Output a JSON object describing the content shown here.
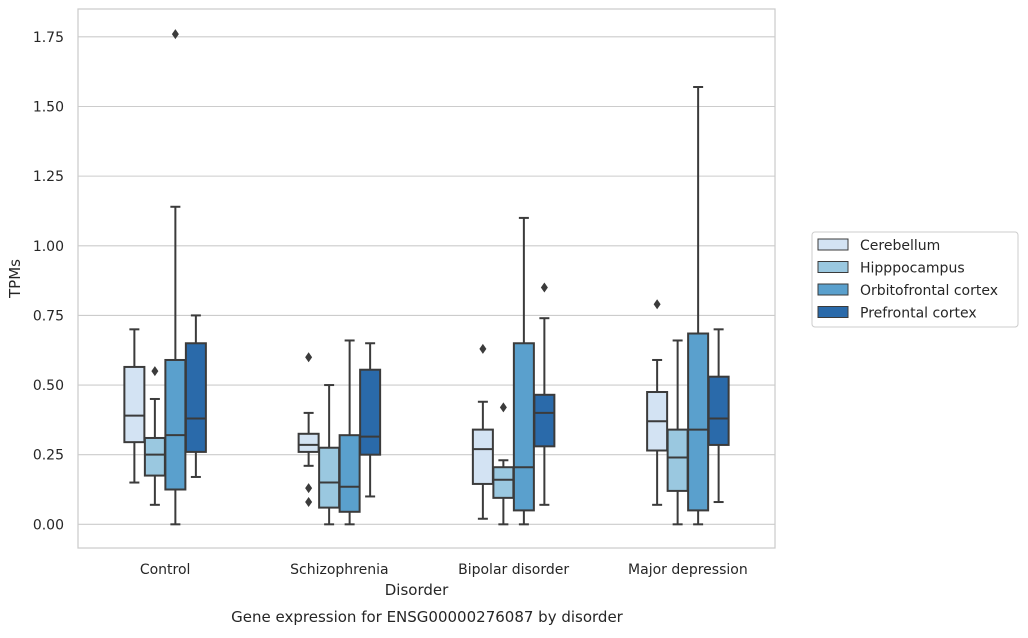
{
  "caption": "Gene expression for ENSG00000276087 by disorder",
  "chart_data": {
    "type": "box",
    "xlabel": "Disorder",
    "ylabel": "TPMs",
    "ylim": [
      -0.085,
      1.85
    ],
    "yticks": [
      0.0,
      0.25,
      0.5,
      0.75,
      1.0,
      1.25,
      1.5,
      1.75
    ],
    "ytick_labels": [
      "0.00",
      "0.25",
      "0.50",
      "0.75",
      "1.00",
      "1.25",
      "1.50",
      "1.75"
    ],
    "grid": "horizontal",
    "legend_placement": "right",
    "categories": [
      "Control",
      "Schizophrenia",
      "Bipolar disorder",
      "Major depression"
    ],
    "series": [
      {
        "name": "Cerebellum",
        "color": "#d3e3f3",
        "boxes": [
          {
            "whislo": 0.15,
            "q1": 0.295,
            "med": 0.39,
            "q3": 0.565,
            "whishi": 0.7,
            "fliers": []
          },
          {
            "whislo": 0.21,
            "q1": 0.26,
            "med": 0.285,
            "q3": 0.325,
            "whishi": 0.4,
            "fliers": [
              0.6,
              0.13,
              0.08
            ]
          },
          {
            "whislo": 0.02,
            "q1": 0.145,
            "med": 0.27,
            "q3": 0.34,
            "whishi": 0.44,
            "fliers": [
              0.63
            ]
          },
          {
            "whislo": 0.07,
            "q1": 0.265,
            "med": 0.37,
            "q3": 0.475,
            "whishi": 0.59,
            "fliers": [
              0.79
            ]
          }
        ]
      },
      {
        "name": "Hipppocampus",
        "color": "#9ac8e0",
        "boxes": [
          {
            "whislo": 0.07,
            "q1": 0.175,
            "med": 0.25,
            "q3": 0.31,
            "whishi": 0.45,
            "fliers": [
              0.55
            ]
          },
          {
            "whislo": 0.0,
            "q1": 0.06,
            "med": 0.15,
            "q3": 0.275,
            "whishi": 0.5,
            "fliers": []
          },
          {
            "whislo": 0.0,
            "q1": 0.095,
            "med": 0.16,
            "q3": 0.205,
            "whishi": 0.23,
            "fliers": [
              0.42
            ]
          },
          {
            "whislo": 0.0,
            "q1": 0.12,
            "med": 0.24,
            "q3": 0.34,
            "whishi": 0.66,
            "fliers": []
          }
        ]
      },
      {
        "name": "Orbitofrontal cortex",
        "color": "#5aa0cd",
        "boxes": [
          {
            "whislo": 0.0,
            "q1": 0.125,
            "med": 0.32,
            "q3": 0.59,
            "whishi": 1.14,
            "fliers": [
              1.76
            ]
          },
          {
            "whislo": 0.0,
            "q1": 0.045,
            "med": 0.135,
            "q3": 0.32,
            "whishi": 0.66,
            "fliers": []
          },
          {
            "whislo": 0.0,
            "q1": 0.05,
            "med": 0.205,
            "q3": 0.65,
            "whishi": 1.1,
            "fliers": []
          },
          {
            "whislo": 0.0,
            "q1": 0.05,
            "med": 0.34,
            "q3": 0.685,
            "whishi": 1.57,
            "fliers": []
          }
        ]
      },
      {
        "name": "Prefrontal cortex",
        "color": "#2a6aaa",
        "boxes": [
          {
            "whislo": 0.17,
            "q1": 0.26,
            "med": 0.38,
            "q3": 0.65,
            "whishi": 0.75,
            "fliers": []
          },
          {
            "whislo": 0.1,
            "q1": 0.25,
            "med": 0.315,
            "q3": 0.555,
            "whishi": 0.65,
            "fliers": []
          },
          {
            "whislo": 0.07,
            "q1": 0.28,
            "med": 0.4,
            "q3": 0.465,
            "whishi": 0.74,
            "fliers": [
              0.85
            ]
          },
          {
            "whislo": 0.08,
            "q1": 0.285,
            "med": 0.38,
            "q3": 0.53,
            "whishi": 0.7,
            "fliers": []
          }
        ]
      }
    ]
  }
}
